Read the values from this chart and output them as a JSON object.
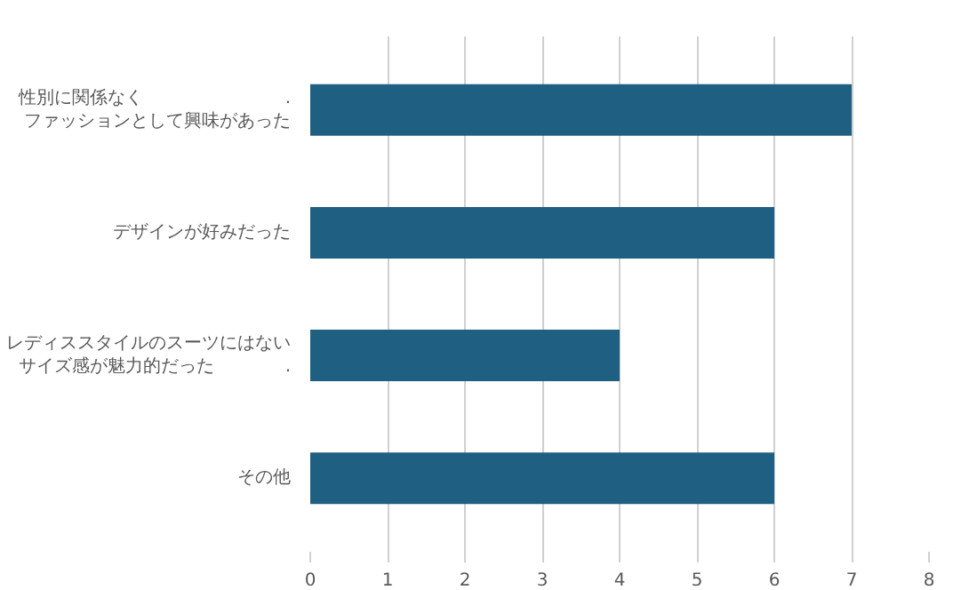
{
  "chart_data": {
    "type": "bar",
    "orientation": "horizontal",
    "categories": [
      "性別に関係なく　　　　　　　　.ファッションとして興味があった",
      "デザインが好みだった",
      "レディススタイルのスーツにはないサイズ感が魅力的だった　　　　.",
      "その他"
    ],
    "values": [
      7,
      6,
      4,
      6
    ],
    "color": "#1f5f82",
    "xlim": [
      0,
      8
    ],
    "xticks": [
      0,
      1,
      2,
      3,
      4,
      5,
      6,
      7,
      8
    ],
    "grid": "x"
  }
}
